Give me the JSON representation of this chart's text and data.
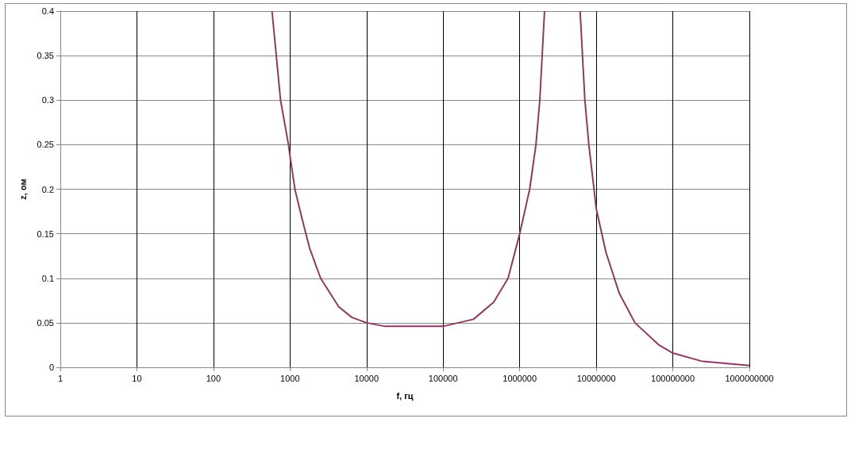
{
  "chart_data": {
    "type": "line",
    "xlabel": "f, гц",
    "ylabel": "z, ом",
    "x": [
      582,
      752,
      955,
      1000,
      1165,
      1445,
      1800,
      2510,
      4330,
      6440,
      10000,
      17400,
      100000,
      250000,
      456000,
      705000,
      1000000,
      1350000,
      1630000,
      1830000,
      2110000,
      3500000,
      6150000,
      7100000,
      8000000,
      10000000,
      13400000,
      20000000,
      32000000,
      66000000,
      100000000,
      235000000,
      1000000000
    ],
    "series": [
      {
        "color": "#8b3a62",
        "values": [
          0.4,
          0.3,
          0.25,
          0.237,
          0.199,
          0.166,
          0.134,
          0.1,
          0.068,
          0.056,
          0.05,
          0.046,
          0.046,
          0.054,
          0.073,
          0.1,
          0.15,
          0.2,
          0.25,
          0.3,
          0.4,
          null,
          0.4,
          0.3,
          0.25,
          0.178,
          0.129,
          0.083,
          0.05,
          0.025,
          0.016,
          0.007,
          0.002
        ]
      }
    ],
    "log": "x",
    "xlim": [
      1,
      1000000000
    ],
    "xticks": [
      1,
      10,
      100,
      1000,
      10000,
      100000,
      1000000,
      10000000,
      100000000,
      1000000000
    ],
    "ylim": [
      0,
      0.4
    ],
    "yticks": [
      0,
      0.05,
      0.1,
      0.15,
      0.2,
      0.25,
      0.3,
      0.35,
      0.4
    ],
    "grid": true,
    "marker": "none",
    "line_style": "solid"
  }
}
